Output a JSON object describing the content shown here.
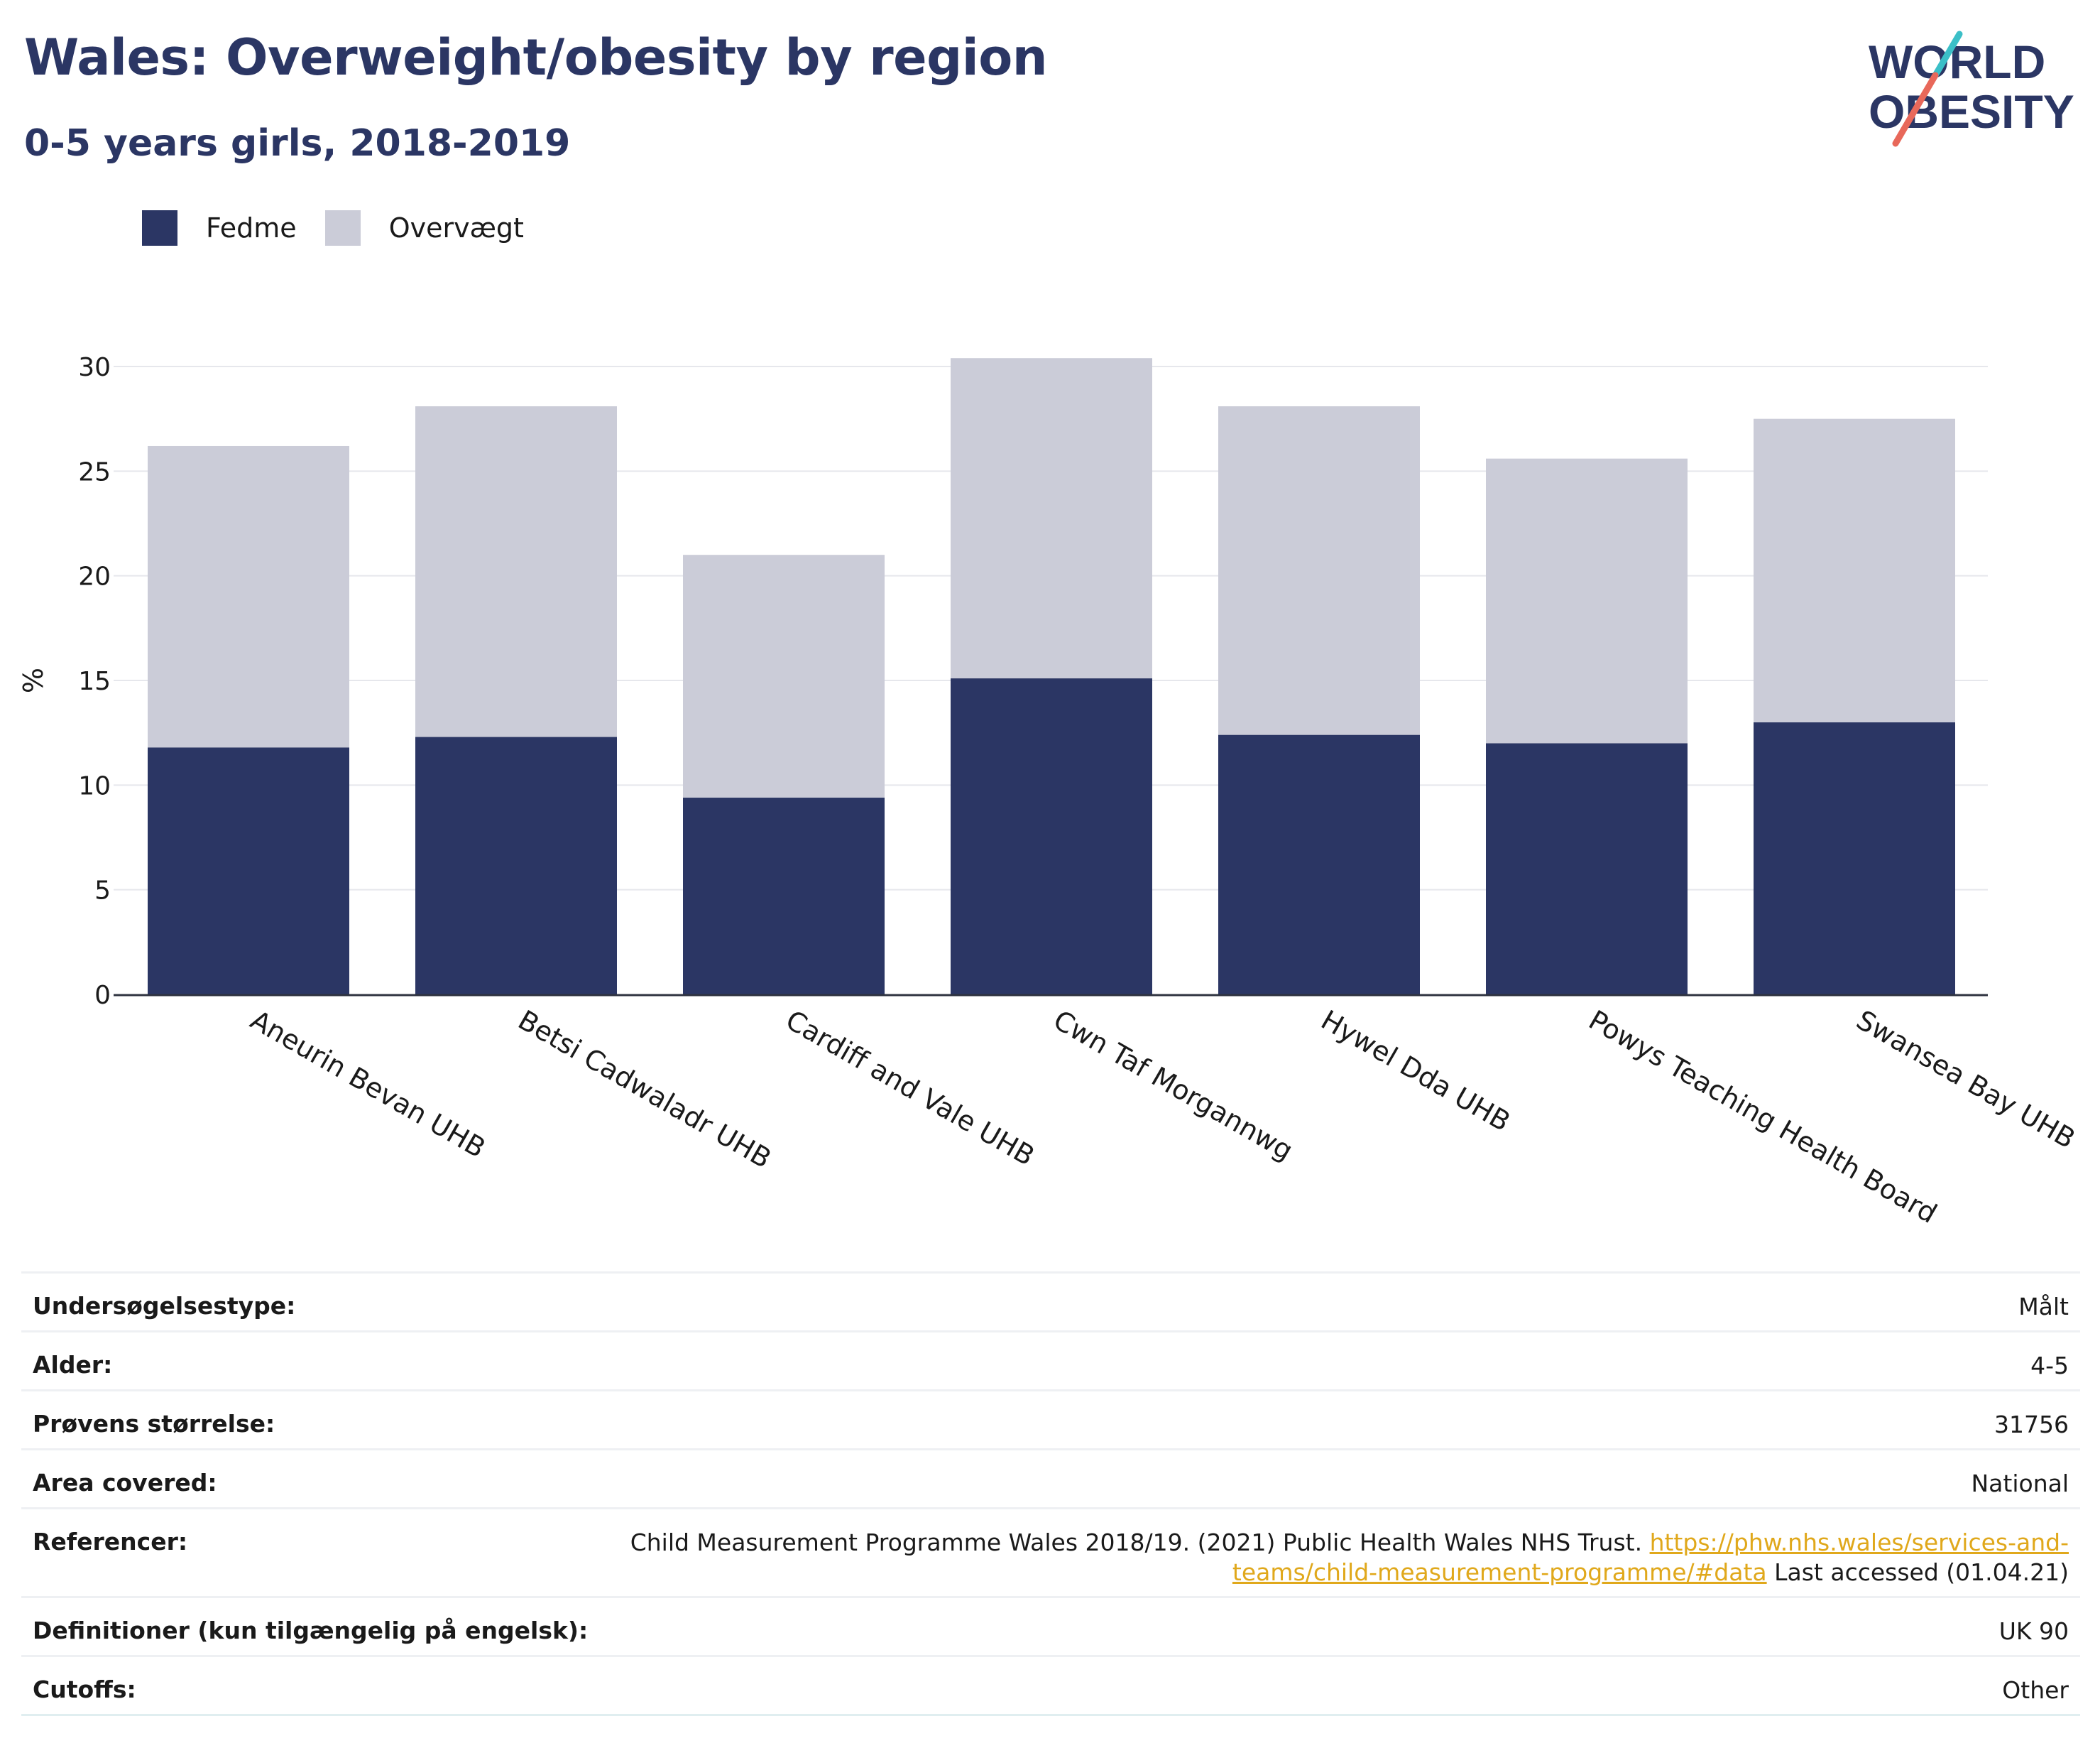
{
  "header": {
    "title": "Wales: Overweight/obesity by region",
    "subtitle": "0-5 years girls, 2018-2019"
  },
  "logo": {
    "line1": "WORLD",
    "line2": "OBESITY"
  },
  "colors": {
    "obesity": "#2b3664",
    "overweight": "#cbccd8",
    "title": "#2b3664",
    "link": "#e0a81b"
  },
  "chart_data": {
    "type": "bar",
    "stacked": true,
    "categories": [
      "Aneurin Bevan UHB",
      "Betsi Cadwaladr UHB",
      "Cardiff and Vale UHB",
      "Cwn Taf Morgannwg",
      "Hywel Dda UHB",
      "Powys Teaching Health Board",
      "Swansea Bay UHB"
    ],
    "series": [
      {
        "name": "Fedme",
        "values": [
          11.8,
          12.3,
          9.4,
          15.1,
          12.4,
          12.0,
          13.0
        ]
      },
      {
        "name": "Overvægt",
        "values": [
          14.4,
          15.8,
          11.6,
          15.3,
          15.7,
          13.6,
          14.5
        ]
      }
    ],
    "ylabel": "%",
    "ylim": [
      0,
      31
    ],
    "yticks": [
      "0",
      "5",
      "10",
      "15",
      "20",
      "25",
      "30"
    ],
    "grid": true,
    "legend": "top-left"
  },
  "info": {
    "rows": [
      {
        "label": "Undersøgelsestype:",
        "value": "Målt"
      },
      {
        "label": "Alder:",
        "value": "4-5"
      },
      {
        "label": "Prøvens størrelse:",
        "value": "31756"
      },
      {
        "label": "Area covered:",
        "value": "National"
      }
    ],
    "reference": {
      "label": "Referencer:",
      "text": "Child Measurement Programme Wales 2018/19. (2021) Public Health Wales NHS Trust.",
      "link_part1": "https://phw.nhs.wales/services-and-",
      "link_part2": "teams/child-measurement-programme/#data",
      "suffix": "Last accessed (01.04.21)"
    },
    "rows2": [
      {
        "label": "Definitioner (kun tilgængelig på engelsk):",
        "value": "UK 90"
      },
      {
        "label": "Cutoffs:",
        "value": "Other"
      }
    ]
  }
}
